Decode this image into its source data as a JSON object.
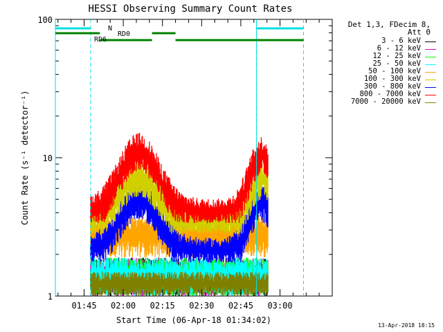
{
  "chart_data": {
    "type": "line",
    "title": "HESSI Observing Summary Count Rates",
    "xlabel": "Start Time (06-Apr-18 01:34:02)",
    "ylabel": "Count Rate (s⁻¹ detector⁻¹)",
    "yscale": "log",
    "ylim": [
      1,
      100
    ],
    "xlim_minutes_from_start": [
      0,
      106
    ],
    "x_tick_labels": [
      "01:45",
      "02:00",
      "02:15",
      "02:30",
      "02:45",
      "03:00"
    ],
    "x_tick_minutes": [
      11,
      26,
      41,
      56,
      71,
      86
    ],
    "y_tick_labels": [
      "1",
      "10",
      "100"
    ],
    "y_tick_values": [
      1,
      10,
      100
    ],
    "data_start_minute": 13.5,
    "data_end_minute": 81.5,
    "series": [
      {
        "name": "3 - 6 keV",
        "color": "#000000",
        "profile": "constant",
        "low": 1.0,
        "high": 1.9
      },
      {
        "name": "6 - 12 keV",
        "color": "#e000e0",
        "profile": "constant",
        "low": 1.0,
        "high": 1.9
      },
      {
        "name": "12 - 25 keV",
        "color": "#00ff00",
        "profile": "constant",
        "low": 1.0,
        "high": 1.9
      },
      {
        "name": "25 - 50 keV",
        "color": "#00ffff",
        "profile": "constant",
        "low": 1.0,
        "high": 1.9
      },
      {
        "name": "50 - 100 keV",
        "color": "#ffa500",
        "profile": "constant",
        "low": 1.9,
        "high": 3.9
      },
      {
        "name": "100 - 300 keV",
        "color": "#d0d000",
        "profile": "double_hump",
        "low": 4.0,
        "high": 9.5
      },
      {
        "name": "300 - 800 keV",
        "color": "#0000ff",
        "profile": "double_hump",
        "low": 2.5,
        "high": 6.5
      },
      {
        "name": "800 - 7000 keV",
        "color": "#ff0000",
        "profile": "double_hump",
        "low": 4.8,
        "high": 14.5
      },
      {
        "name": "7000 - 20000 keV",
        "color": "#808000",
        "profile": "constant",
        "low": 1.0,
        "high": 1.5
      }
    ],
    "legend_title_lines": [
      "Det 1,3, FDecim 8,",
      "Att 0"
    ],
    "legend_placement": "right",
    "annotations": [
      {
        "text": "N",
        "color": "#00e0e0"
      },
      {
        "text": "RD0",
        "color": "#008000"
      },
      {
        "text": "RD6",
        "color": "#008000"
      }
    ],
    "night_segments_minutes": [
      [
        0,
        13.5
      ],
      [
        77,
        95
      ]
    ],
    "rd0_segments_minutes": [
      [
        17,
        37
      ],
      [
        46,
        66
      ],
      [
        66,
        95
      ]
    ],
    "rd6_segments_minutes": [
      [
        0,
        17
      ],
      [
        37,
        46
      ]
    ],
    "dashed_markers_minutes": [
      13.5,
      77,
      95
    ],
    "solid_markers_minutes": [
      0,
      77
    ]
  },
  "footer": {
    "timestamp": "13-Apr-2018 18:15"
  }
}
